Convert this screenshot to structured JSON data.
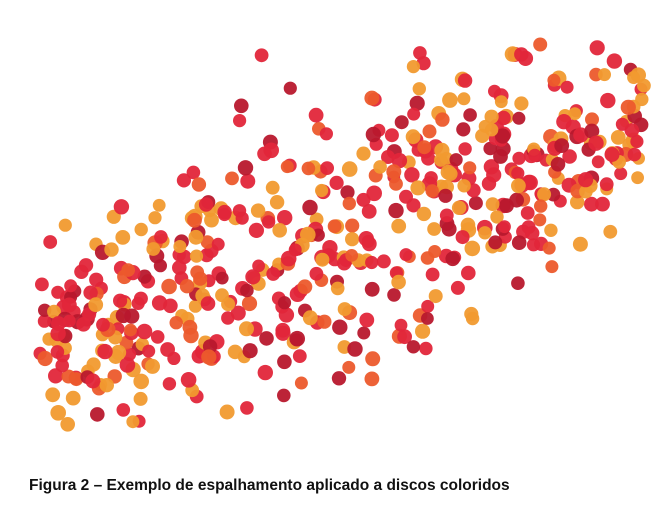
{
  "figure": {
    "caption": "Figura 2 – Exemplo de espalhamento aplicado a discos coloridos",
    "disc_colors": {
      "red": "#e2263a",
      "dark_red": "#b8182d",
      "orange": "#f19a2f",
      "orange_red": "#ec5a2c"
    },
    "disc_count": 560
  }
}
